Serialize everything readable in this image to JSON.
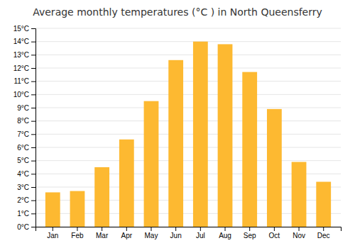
{
  "chart_data": {
    "type": "bar",
    "title": "Average monthly temperatures (°C ) in North Queensferry",
    "categories": [
      "Jan",
      "Feb",
      "Mar",
      "Apr",
      "May",
      "Jun",
      "Jul",
      "Aug",
      "Sep",
      "Oct",
      "Nov",
      "Dec"
    ],
    "values": [
      2.6,
      2.7,
      4.5,
      6.6,
      9.5,
      12.6,
      14.0,
      13.8,
      11.7,
      8.9,
      4.9,
      3.4
    ],
    "color": "#FDB931",
    "ylim": [
      0,
      15
    ],
    "yticks": [
      {
        "value": 0,
        "label": "0°C"
      },
      {
        "value": 1,
        "label": "1°C"
      },
      {
        "value": 2,
        "label": "2°C"
      },
      {
        "value": 3,
        "label": "3°C"
      },
      {
        "value": 4,
        "label": "4°C"
      },
      {
        "value": 5,
        "label": "5°C"
      },
      {
        "value": 6,
        "label": "6°C"
      },
      {
        "value": 7,
        "label": "7°C"
      },
      {
        "value": 8,
        "label": "8°C"
      },
      {
        "value": 9,
        "label": "9°C"
      },
      {
        "value": 10,
        "label": "10°C"
      },
      {
        "value": 11,
        "label": "11°C"
      },
      {
        "value": 12,
        "label": "12°C"
      },
      {
        "value": 13,
        "label": "13°C"
      },
      {
        "value": 14,
        "label": "14°C"
      },
      {
        "value": 15,
        "label": "15°C"
      }
    ],
    "grid": true
  }
}
